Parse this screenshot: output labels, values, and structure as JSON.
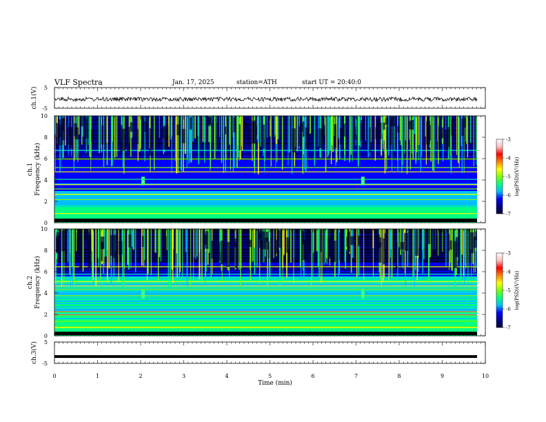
{
  "header": {
    "title": "VLF Spectra",
    "date": "Jan. 17, 2025",
    "station": "station=ATH",
    "start": "start UT = 20:40:0"
  },
  "chart_data": {
    "type": "heatmap",
    "xlabel": "Time (min)",
    "xlim": [
      0,
      10
    ],
    "xticks": [
      "0",
      "1",
      "2",
      "3",
      "4",
      "5",
      "6",
      "7",
      "8",
      "9",
      "10"
    ],
    "panels": [
      {
        "id": "ch1-waveform",
        "ylabel": "ch.1(V)",
        "ylim": [
          -5,
          5
        ],
        "yticks": [
          "5",
          "-5"
        ]
      },
      {
        "id": "ch1-spectrogram",
        "ylabel_line1": "ch.1",
        "ylabel_line2": "Frequency (kHz)",
        "ylim": [
          0,
          10
        ],
        "yticks": [
          "0",
          "2",
          "4",
          "6",
          "8",
          "10"
        ]
      },
      {
        "id": "ch2-spectrogram",
        "ylabel_line1": "ch.2",
        "ylabel_line2": "Frequency (kHz)",
        "ylim": [
          0,
          10
        ],
        "yticks": [
          "0",
          "2",
          "4",
          "6",
          "8",
          "10"
        ]
      },
      {
        "id": "ch3-waveform",
        "ylabel": "ch.3(V)",
        "ylim": [
          -5,
          5
        ],
        "yticks": [
          "5",
          "-5"
        ]
      }
    ],
    "colorbar": {
      "label": "log(PSD)(V²/Hz)",
      "range": [
        -7,
        -3
      ],
      "ticks": [
        "-3",
        "-4",
        "-5",
        "-6",
        "-7"
      ],
      "colors": [
        "#000033",
        "#00008b",
        "#0000ff",
        "#00bfff",
        "#00ff80",
        "#80ff00",
        "#ffff00",
        "#ff8000",
        "#ff0000",
        "#ffc0c0",
        "#ffffff"
      ]
    },
    "ch1_waveform_level": -0.6,
    "ch3_waveform_level": -1.8,
    "event_times_min": [
      2.05,
      7.15
    ]
  }
}
